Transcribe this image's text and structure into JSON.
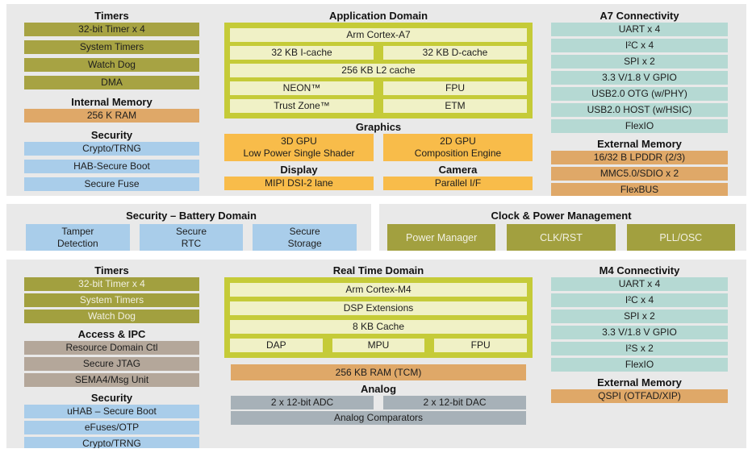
{
  "colors": {
    "panel_bg": "#e9e9e9",
    "olive": "#a7a343",
    "yellow_container": "#c5cb38",
    "pale_yellow_cell": "#f0f1c6",
    "orange": "#f8bc4a",
    "tan": "#dfa868",
    "teal": "#b5d9d3",
    "blue": "#a9cdea",
    "taupe": "#b4a79a",
    "gray": "#a7b1b8"
  },
  "top_band": {
    "left": {
      "timers": {
        "title": "Timers",
        "items": [
          "32-bit Timer x 4",
          "System Timers",
          "Watch Dog",
          "DMA"
        ]
      },
      "internal_memory": {
        "title": "Internal Memory",
        "items": [
          "256 K RAM"
        ]
      },
      "security": {
        "title": "Security",
        "items": [
          "Crypto/TRNG",
          "HAB-Secure Boot",
          "Secure Fuse"
        ]
      }
    },
    "center": {
      "title": "Application Domain",
      "cpu": {
        "core": "Arm Cortex-A7",
        "icache": "32 KB I-cache",
        "dcache": "32 KB D-cache",
        "l2": "256 KB L2 cache",
        "neon": "NEON™",
        "fpu": "FPU",
        "trustzone": "Trust Zone™",
        "etm": "ETM"
      },
      "graphics": {
        "title": "Graphics",
        "gpu3d_line1": "3D GPU",
        "gpu3d_line2": "Low Power Single Shader",
        "gpu2d_line1": "2D GPU",
        "gpu2d_line2": "Composition Engine"
      },
      "display": {
        "title": "Display",
        "item": "MIPI DSI-2 lane"
      },
      "camera": {
        "title": "Camera",
        "item": "Parallel I/F"
      }
    },
    "right": {
      "connectivity": {
        "title": "A7 Connectivity",
        "items": [
          "UART x 4",
          "I²C x 4",
          "SPI x 2",
          "3.3 V/1.8 V GPIO",
          "USB2.0 OTG (w/PHY)",
          "USB2.0 HOST (w/HSIC)",
          "FlexIO"
        ]
      },
      "external_memory": {
        "title": "External Memory",
        "items": [
          "16/32 B LPDDR (2/3)",
          "MMC5.0/SDIO x 2",
          "FlexBUS"
        ]
      }
    }
  },
  "middle_band": {
    "battery": {
      "title": "Security – Battery Domain",
      "items": [
        {
          "line1": "Tamper",
          "line2": "Detection"
        },
        {
          "line1": "Secure",
          "line2": "RTC"
        },
        {
          "line1": "Secure",
          "line2": "Storage"
        }
      ]
    },
    "clock": {
      "title": "Clock & Power Management",
      "items": [
        "Power Manager",
        "CLK/RST",
        "PLL/OSC"
      ]
    }
  },
  "bottom_band": {
    "left": {
      "timers": {
        "title": "Timers",
        "items": [
          "32-bit Timer x 4",
          "System Timers",
          "Watch Dog"
        ]
      },
      "access_ipc": {
        "title": "Access & IPC",
        "items": [
          "Resource Domain Ctl",
          "Secure JTAG",
          "SEMA4/Msg Unit"
        ]
      },
      "security": {
        "title": "Security",
        "items": [
          "uHAB – Secure Boot",
          "eFuses/OTP",
          "Crypto/TRNG"
        ]
      }
    },
    "center": {
      "title": "Real Time Domain",
      "cpu": {
        "core": "Arm Cortex-M4",
        "dsp": "DSP Extensions",
        "cache": "8 KB Cache",
        "dap": "DAP",
        "mpu": "MPU",
        "fpu": "FPU"
      },
      "ram": "256 KB RAM (TCM)",
      "analog": {
        "title": "Analog",
        "adc": "2 x 12-bit ADC",
        "dac": "2 x 12-bit DAC",
        "comparators": "Analog Comparators"
      }
    },
    "right": {
      "connectivity": {
        "title": "M4 Connectivity",
        "items": [
          "UART x 4",
          "I²C x 4",
          "SPI x 2",
          "3.3 V/1.8 V GPIO",
          "I²S x 2",
          "FlexIO"
        ]
      },
      "external_memory": {
        "title": "External Memory",
        "items": [
          "QSPI (OTFAD/XIP)"
        ]
      }
    }
  }
}
